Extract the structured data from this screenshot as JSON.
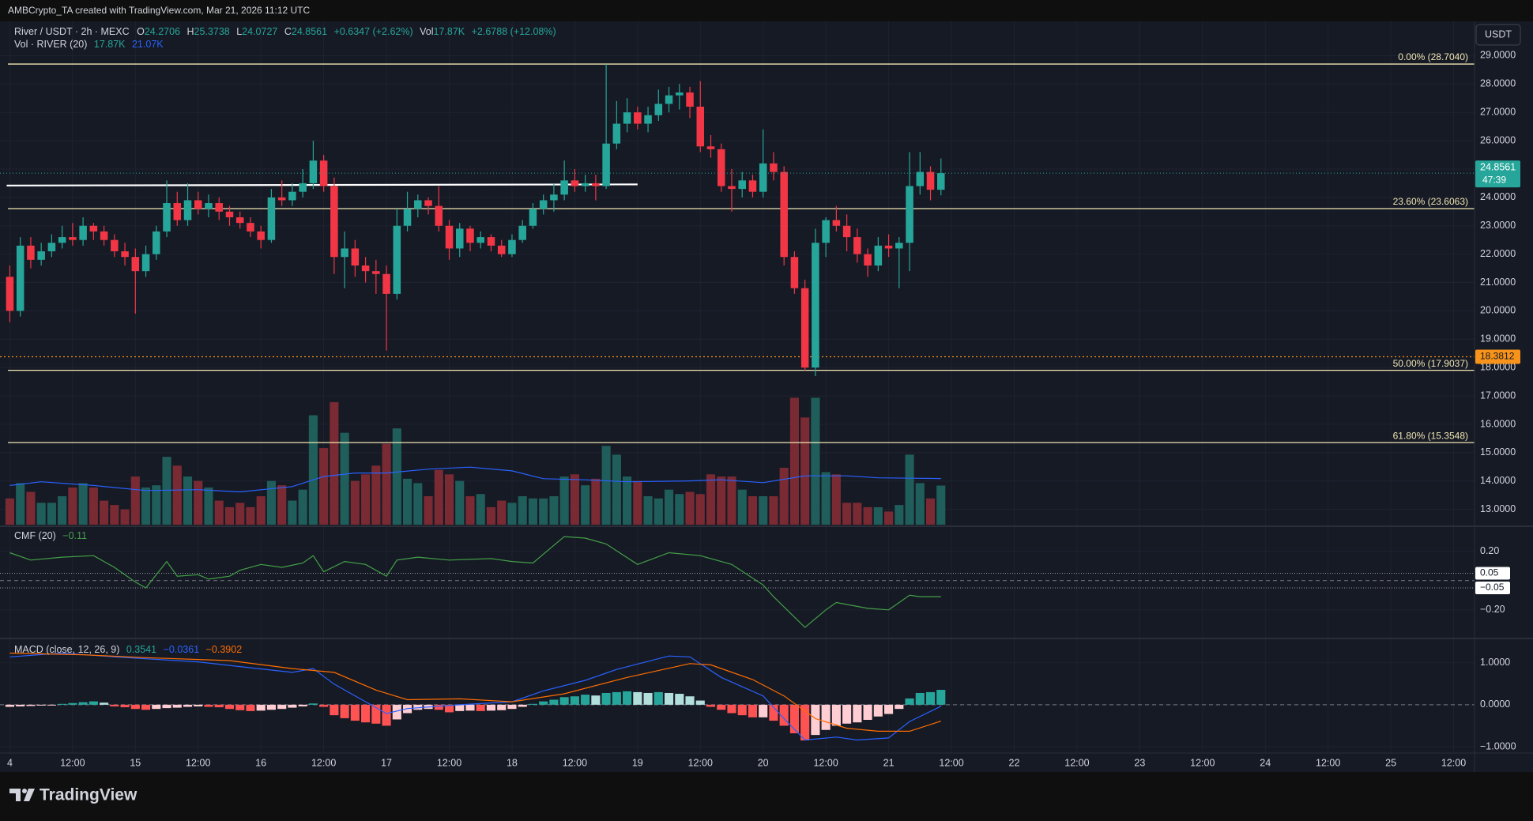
{
  "top_bar": {
    "text": "AMBCrypto_TA created with TradingView.com, Mar 21, 2026 11:12 UTC"
  },
  "chart_data": {
    "type": "candlestick",
    "symbol": "River / USDT · 2h · MEXC",
    "ohlc_labels": [
      "O",
      "H",
      "L",
      "C"
    ],
    "change": "+0.6347 (+2.62%)",
    "volume_label": "Vol",
    "volume_text": "17.87K",
    "volume_change": "+2.6788 (+12.08%)",
    "currency": "USDT",
    "countdown": "47:39",
    "up_color": "#26a69a",
    "down_color": "#f23645",
    "grid": true,
    "xlim": [
      -0.94,
      140
    ],
    "xticks": [
      {
        "value": 0,
        "label": "4"
      },
      {
        "value": 6,
        "label": "12:00"
      },
      {
        "value": 12,
        "label": "15"
      },
      {
        "value": 18,
        "label": "12:00"
      },
      {
        "value": 24,
        "label": "16"
      },
      {
        "value": 30,
        "label": "12:00"
      },
      {
        "value": 36,
        "label": "17"
      },
      {
        "value": 42,
        "label": "12:00"
      },
      {
        "value": 48,
        "label": "18"
      },
      {
        "value": 54,
        "label": "12:00"
      },
      {
        "value": 60,
        "label": "19"
      },
      {
        "value": 66,
        "label": "12:00"
      },
      {
        "value": 72,
        "label": "20"
      },
      {
        "value": 78,
        "label": "12:00"
      },
      {
        "value": 84,
        "label": "21"
      },
      {
        "value": 90,
        "label": "12:00"
      },
      {
        "value": 96,
        "label": "22"
      },
      {
        "value": 102,
        "label": "12:00"
      },
      {
        "value": 108,
        "label": "23"
      },
      {
        "value": 114,
        "label": "12:00"
      },
      {
        "value": 120,
        "label": "24"
      },
      {
        "value": 126,
        "label": "12:00"
      },
      {
        "value": 132,
        "label": "25"
      },
      {
        "value": 138,
        "label": "12:00"
      }
    ],
    "ylim": [
      12.46,
      30.21
    ],
    "yticks": [
      {
        "value": 13,
        "label": "13.0000"
      },
      {
        "value": 14,
        "label": "14.0000"
      },
      {
        "value": 15,
        "label": "15.0000"
      },
      {
        "value": 16,
        "label": "16.0000"
      },
      {
        "value": 17,
        "label": "17.0000"
      },
      {
        "value": 18,
        "label": "18.0000"
      },
      {
        "value": 19,
        "label": "19.0000"
      },
      {
        "value": 20,
        "label": "20.0000"
      },
      {
        "value": 21,
        "label": "21.0000"
      },
      {
        "value": 22,
        "label": "22.0000"
      },
      {
        "value": 23,
        "label": "23.0000"
      },
      {
        "value": 24,
        "label": "24.0000"
      },
      {
        "value": 25,
        "label": "25.0000"
      },
      {
        "value": 26,
        "label": "26.0000"
      },
      {
        "value": 27,
        "label": "27.0000"
      },
      {
        "value": 28,
        "label": "28.0000"
      },
      {
        "value": 29,
        "label": "29.0000"
      }
    ],
    "candles": {
      "values": [
        [
          21.2,
          21.6,
          19.6,
          20.0
        ],
        [
          20.0,
          22.6,
          19.8,
          22.3
        ],
        [
          22.3,
          22.6,
          21.5,
          21.8
        ],
        [
          21.8,
          22.4,
          21.6,
          22.1
        ],
        [
          22.1,
          22.7,
          21.9,
          22.4
        ],
        [
          22.4,
          23.0,
          22.2,
          22.6
        ],
        [
          22.6,
          23.1,
          22.3,
          22.5
        ],
        [
          22.5,
          23.3,
          22.3,
          23.0
        ],
        [
          23.0,
          23.1,
          22.5,
          22.8
        ],
        [
          22.8,
          23.0,
          22.3,
          22.5
        ],
        [
          22.5,
          22.7,
          21.9,
          22.1
        ],
        [
          22.1,
          22.4,
          21.6,
          21.9
        ],
        [
          21.9,
          22.2,
          19.9,
          21.4
        ],
        [
          21.4,
          22.3,
          21.2,
          22.0
        ],
        [
          22.0,
          23.0,
          21.8,
          22.8
        ],
        [
          22.8,
          24.6,
          22.6,
          23.8
        ],
        [
          23.8,
          24.2,
          23.0,
          23.2
        ],
        [
          23.2,
          24.5,
          23.0,
          23.9
        ],
        [
          23.9,
          24.2,
          23.4,
          23.6
        ],
        [
          23.6,
          24.1,
          23.3,
          23.8
        ],
        [
          23.8,
          24.0,
          23.2,
          23.5
        ],
        [
          23.5,
          23.7,
          23.0,
          23.3
        ],
        [
          23.3,
          23.5,
          22.9,
          23.1
        ],
        [
          23.1,
          23.3,
          22.6,
          22.8
        ],
        [
          22.8,
          23.0,
          22.2,
          22.5
        ],
        [
          22.5,
          24.3,
          22.4,
          24.0
        ],
        [
          24.0,
          24.6,
          23.7,
          23.9
        ],
        [
          23.9,
          24.5,
          23.7,
          24.2
        ],
        [
          24.2,
          25.0,
          24.0,
          24.5
        ],
        [
          24.5,
          26.0,
          24.3,
          25.3
        ],
        [
          25.3,
          25.5,
          24.2,
          24.4
        ],
        [
          24.4,
          24.7,
          21.3,
          21.9
        ],
        [
          21.9,
          22.8,
          20.8,
          22.2
        ],
        [
          22.2,
          22.5,
          21.2,
          21.6
        ],
        [
          21.6,
          21.9,
          21.0,
          21.4
        ],
        [
          21.4,
          21.8,
          20.6,
          21.3
        ],
        [
          21.3,
          21.6,
          18.6,
          20.6
        ],
        [
          20.6,
          23.6,
          20.4,
          23.0
        ],
        [
          23.0,
          24.2,
          22.8,
          23.6
        ],
        [
          23.6,
          24.1,
          23.3,
          23.9
        ],
        [
          23.9,
          24.0,
          23.4,
          23.7
        ],
        [
          23.7,
          24.4,
          22.8,
          23.0
        ],
        [
          23.0,
          23.2,
          21.8,
          22.2
        ],
        [
          22.2,
          23.1,
          21.9,
          22.9
        ],
        [
          22.9,
          23.0,
          22.1,
          22.4
        ],
        [
          22.4,
          22.8,
          22.2,
          22.6
        ],
        [
          22.6,
          22.7,
          22.1,
          22.3
        ],
        [
          22.3,
          22.5,
          21.9,
          22.0
        ],
        [
          22.0,
          22.7,
          21.9,
          22.5
        ],
        [
          22.5,
          23.2,
          22.4,
          23.0
        ],
        [
          23.0,
          23.8,
          22.9,
          23.6
        ],
        [
          23.6,
          24.1,
          23.4,
          23.9
        ],
        [
          23.9,
          24.5,
          23.5,
          24.1
        ],
        [
          24.1,
          25.3,
          23.9,
          24.6
        ],
        [
          24.6,
          25.0,
          24.2,
          24.4
        ],
        [
          24.4,
          24.8,
          24.2,
          24.5
        ],
        [
          24.5,
          24.8,
          23.9,
          24.4
        ],
        [
          24.4,
          28.7,
          24.3,
          25.9
        ],
        [
          25.9,
          27.4,
          25.7,
          26.6
        ],
        [
          26.6,
          27.5,
          26.3,
          27.0
        ],
        [
          27.0,
          27.2,
          26.4,
          26.6
        ],
        [
          26.6,
          27.2,
          26.3,
          26.9
        ],
        [
          26.9,
          27.8,
          26.7,
          27.3
        ],
        [
          27.3,
          27.9,
          27.0,
          27.6
        ],
        [
          27.6,
          28.0,
          27.1,
          27.7
        ],
        [
          27.7,
          27.9,
          26.8,
          27.2
        ],
        [
          27.2,
          28.1,
          25.6,
          25.8
        ],
        [
          25.8,
          26.2,
          25.4,
          25.7
        ],
        [
          25.7,
          25.9,
          24.2,
          24.4
        ],
        [
          24.4,
          25.0,
          23.5,
          24.3
        ],
        [
          24.3,
          24.9,
          24.0,
          24.6
        ],
        [
          24.6,
          24.8,
          24.0,
          24.2
        ],
        [
          24.2,
          26.4,
          24.0,
          25.2
        ],
        [
          25.2,
          25.6,
          24.6,
          24.9
        ],
        [
          24.9,
          25.1,
          21.6,
          21.9
        ],
        [
          21.9,
          22.1,
          20.6,
          20.8
        ],
        [
          20.8,
          21.1,
          17.9,
          18.0
        ],
        [
          18.0,
          22.9,
          17.7,
          22.4
        ],
        [
          22.4,
          23.3,
          21.9,
          23.2
        ],
        [
          23.2,
          23.7,
          22.8,
          23.0
        ],
        [
          23.0,
          23.4,
          22.1,
          22.6
        ],
        [
          22.6,
          22.9,
          21.7,
          22.0
        ],
        [
          22.0,
          22.2,
          21.2,
          21.6
        ],
        [
          21.6,
          22.6,
          21.4,
          22.3
        ],
        [
          22.3,
          22.7,
          21.9,
          22.2
        ],
        [
          22.2,
          22.6,
          20.8,
          22.4
        ],
        [
          22.4,
          25.6,
          21.4,
          24.4
        ],
        [
          24.4,
          25.6,
          24.1,
          24.9
        ],
        [
          24.9,
          25.1,
          23.9,
          24.2706
        ],
        [
          24.2706,
          25.3738,
          24.0727,
          24.8561
        ]
      ]
    },
    "fib_color": "#f0e6b4",
    "fib_levels": [
      {
        "value": 28.704,
        "label": "0.00% (28.7040)"
      },
      {
        "value": 23.6063,
        "label": "23.60% (23.6063)"
      },
      {
        "value": 17.9037,
        "label": "50.00% (17.9037)"
      },
      {
        "value": 15.3548,
        "label": "61.80% (15.3548)"
      }
    ],
    "trendline": {
      "x": [
        0,
        60
      ],
      "y": [
        24.42,
        24.46
      ],
      "color": "#ffffff"
    },
    "alert_level": {
      "value": 18.3812,
      "color": "#f7931a"
    },
    "volume": {
      "title": "Vol · RIVER (20)",
      "ma_text": "21.07K",
      "ylim": [
        0,
        230
      ],
      "up_color": "#1f5e5a",
      "down_color": "#7a2a33",
      "values": [
        12,
        19,
        15,
        10,
        10,
        13,
        17,
        19,
        17,
        11,
        9,
        7,
        22,
        17,
        18,
        31,
        27,
        22,
        20,
        17,
        11,
        8,
        10,
        8,
        13,
        20,
        18,
        11,
        16,
        50,
        35,
        56,
        42,
        20,
        23,
        27,
        37,
        44,
        21,
        19,
        13,
        25,
        23,
        20,
        13,
        14,
        8,
        11,
        10,
        13,
        12,
        12,
        13,
        22,
        23,
        18,
        21,
        36,
        32,
        22,
        20,
        13,
        12,
        16,
        14,
        15,
        14,
        23,
        22,
        22,
        16,
        13,
        13,
        13,
        26,
        58,
        49,
        58,
        24,
        23,
        10,
        10,
        8,
        8,
        6,
        9,
        32,
        19,
        12,
        17.87
      ],
      "ma": {
        "color": "#2962ff",
        "x": [
          0,
          3,
          8,
          13,
          18,
          22,
          27,
          30,
          33,
          36,
          40,
          44,
          48,
          51,
          55,
          59,
          65,
          68,
          72,
          76,
          80,
          83,
          89
        ],
        "values": [
          17.9,
          19.6,
          17.9,
          15.6,
          16,
          15,
          17.4,
          22,
          23.6,
          23.6,
          25.4,
          26.3,
          24.6,
          21,
          20.5,
          19.6,
          20,
          20.5,
          19.2,
          22.3,
          22.3,
          21.4,
          21.07
        ]
      }
    },
    "cmf": {
      "title": "CMF (20)",
      "value_text": "−0.11",
      "color": "#43a047",
      "ylim": [
        -0.39,
        0.36
      ],
      "baseline": 0,
      "yticks": [
        {
          "value": 0.2,
          "label": "0.20"
        },
        {
          "value": -0.2,
          "label": "−0.20"
        }
      ],
      "bands": [
        {
          "value": 0.05,
          "label": "0.05"
        },
        {
          "value": -0.05,
          "label": "−0.05"
        }
      ],
      "x": [
        0,
        2,
        5,
        8,
        10,
        12,
        13,
        15,
        16,
        18,
        19,
        21,
        22,
        24,
        26,
        28,
        29,
        30,
        32,
        34,
        36,
        37,
        39,
        42,
        46,
        48,
        50,
        53,
        55,
        57,
        60,
        63,
        66,
        69,
        72,
        73,
        76,
        78,
        79,
        82,
        84,
        86,
        87,
        89
      ],
      "values": [
        0.19,
        0.14,
        0.16,
        0.17,
        0.09,
        -0.01,
        -0.05,
        0.13,
        0.03,
        0.04,
        0.01,
        0.03,
        0.07,
        0.11,
        0.09,
        0.12,
        0.17,
        0.06,
        0.13,
        0.11,
        0.03,
        0.14,
        0.16,
        0.14,
        0.15,
        0.13,
        0.12,
        0.3,
        0.29,
        0.25,
        0.11,
        0.19,
        0.17,
        0.11,
        -0.03,
        -0.11,
        -0.32,
        -0.2,
        -0.15,
        -0.19,
        -0.2,
        -0.1,
        -0.11,
        -0.11
      ]
    },
    "macd": {
      "title": "MACD (close, 12, 26, 9)",
      "ylim": [
        -1.15,
        1.54
      ],
      "baseline": 0,
      "yticks": [
        {
          "value": 1,
          "label": "1.0000"
        },
        {
          "value": 0,
          "label": "0.0000"
        },
        {
          "value": -1,
          "label": "−1.0000"
        }
      ],
      "histogram": {
        "value_text": "0.3541",
        "colors": {
          "up_growing": "#26a69a",
          "up_falling": "#b2dfdb",
          "down_rising": "#ffcdd2",
          "down_falling": "#ff5252"
        },
        "values": [
          -0.05,
          -0.04,
          -0.03,
          -0.02,
          -0.01,
          0.02,
          0.04,
          0.06,
          0.08,
          0.05,
          -0.04,
          -0.06,
          -0.1,
          -0.12,
          -0.1,
          -0.08,
          -0.07,
          -0.05,
          -0.04,
          -0.05,
          -0.06,
          -0.1,
          -0.13,
          -0.15,
          -0.14,
          -0.12,
          -0.1,
          -0.07,
          -0.04,
          0.03,
          -0.05,
          -0.25,
          -0.32,
          -0.38,
          -0.42,
          -0.45,
          -0.5,
          -0.35,
          -0.2,
          -0.12,
          -0.1,
          -0.12,
          -0.18,
          -0.15,
          -0.14,
          -0.15,
          -0.14,
          -0.13,
          -0.1,
          -0.05,
          0.02,
          0.08,
          0.12,
          0.18,
          0.2,
          0.24,
          0.22,
          0.28,
          0.3,
          0.32,
          0.3,
          0.28,
          0.3,
          0.28,
          0.26,
          0.2,
          0.1,
          -0.05,
          -0.12,
          -0.2,
          -0.25,
          -0.3,
          -0.3,
          -0.38,
          -0.5,
          -0.68,
          -0.85,
          -0.72,
          -0.6,
          -0.5,
          -0.45,
          -0.42,
          -0.36,
          -0.28,
          -0.22,
          -0.1,
          0.15,
          0.28,
          0.3,
          0.3541
        ]
      },
      "macd": {
        "value_text": "−0.0361",
        "color": "#2962ff",
        "x": [
          0,
          5,
          10,
          18,
          23,
          27,
          29,
          31,
          34,
          36,
          38,
          43,
          48,
          51,
          55,
          58,
          63,
          65,
          68,
          72,
          74,
          76,
          79,
          81,
          84,
          86,
          89
        ],
        "values": [
          1.14,
          1.23,
          1.14,
          1.02,
          0.88,
          0.77,
          0.86,
          0.49,
          0.07,
          -0.21,
          -0.09,
          0,
          0.07,
          0.33,
          0.58,
          0.84,
          1.16,
          1.14,
          0.65,
          0.21,
          -0.33,
          -0.84,
          -0.77,
          -0.84,
          -0.79,
          -0.4,
          -0.0361
        ]
      },
      "signal": {
        "value_text": "−0.3902",
        "color": "#ff6d00",
        "x": [
          0,
          7,
          13,
          21,
          27,
          31,
          35,
          38,
          43,
          48,
          53,
          59,
          65,
          67,
          71,
          74,
          77,
          80,
          83,
          86,
          89
        ],
        "values": [
          1.23,
          1.19,
          1.12,
          1.05,
          0.86,
          0.77,
          0.35,
          0.12,
          0.14,
          0.07,
          0.26,
          0.65,
          0.98,
          0.95,
          0.6,
          0.21,
          -0.33,
          -0.56,
          -0.63,
          -0.63,
          -0.3902
        ]
      }
    }
  },
  "footer": {
    "logo": "TradingView"
  }
}
